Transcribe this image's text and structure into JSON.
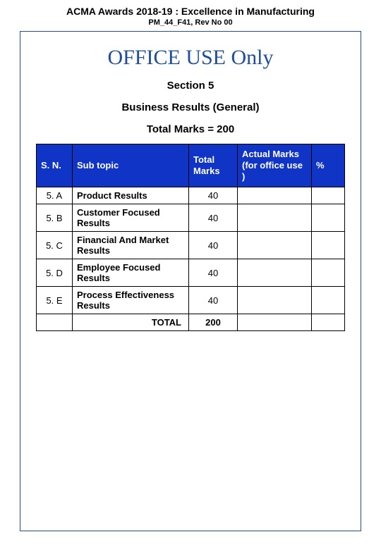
{
  "header": {
    "title": "ACMA Awards 2018-19 : Excellence in Manufacturing",
    "ref": "PM_44_F41, Rev No 00"
  },
  "page": {
    "office_use": "OFFICE USE Only",
    "section": "Section 5",
    "subtitle": "Business Results (General)",
    "total_marks_line": "Total  Marks  =  200"
  },
  "table": {
    "columns": {
      "sn": "S. N.",
      "subtopic": "Sub topic",
      "total_marks": "Total Marks",
      "actual_marks": "Actual Marks (for office use )",
      "pct": "%"
    },
    "rows": [
      {
        "sn": "5. A",
        "topic": "Product Results",
        "marks": "40"
      },
      {
        "sn": "5. B",
        "topic": "Customer Focused Results",
        "marks": "40"
      },
      {
        "sn": "5. C",
        "topic": "Financial And Market Results",
        "marks": "40"
      },
      {
        "sn": "5. D",
        "topic": "Employee Focused Results",
        "marks": "40"
      },
      {
        "sn": "5. E",
        "topic": "Process Effectiveness Results",
        "marks": "40"
      }
    ],
    "total": {
      "label": "TOTAL",
      "value": "200"
    }
  },
  "style": {
    "header_bg": "#1034c6",
    "header_text": "#ffffff",
    "border_color": "#1f4ea0"
  }
}
